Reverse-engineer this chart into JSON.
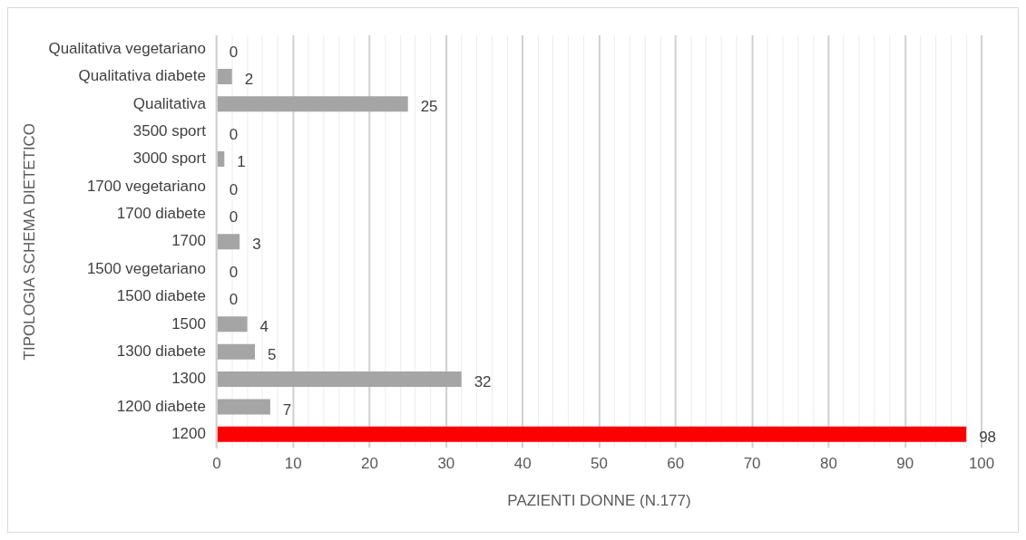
{
  "chart_data": {
    "type": "bar",
    "orientation": "horizontal",
    "categories": [
      "Qualitativa vegetariano",
      "Qualitativa diabete",
      "Qualitativa",
      "3500 sport",
      "3000 sport",
      "1700 vegetariano",
      "1700 diabete",
      "1700",
      "1500 vegetariano",
      "1500 diabete",
      "1500",
      "1300 diabete",
      "1300",
      "1200 diabete",
      "1200"
    ],
    "values": [
      0,
      2,
      25,
      0,
      1,
      0,
      0,
      3,
      0,
      0,
      4,
      5,
      32,
      7,
      98
    ],
    "colors": [
      "#a5a5a5",
      "#a5a5a5",
      "#a5a5a5",
      "#a5a5a5",
      "#a5a5a5",
      "#a5a5a5",
      "#a5a5a5",
      "#a5a5a5",
      "#a5a5a5",
      "#a5a5a5",
      "#a5a5a5",
      "#a5a5a5",
      "#a5a5a5",
      "#a5a5a5",
      "#ff0000"
    ],
    "xlim": [
      0,
      100
    ],
    "xticks": [
      0,
      {
        "value": 2,
        "label": null
      },
      {
        "value": 4,
        "label": null
      },
      {
        "value": 6,
        "label": null
      },
      {
        "value": 8,
        "label": null
      },
      10,
      {
        "value": 12,
        "label": null
      },
      {
        "value": 14,
        "label": null
      },
      {
        "value": 16,
        "label": null
      },
      {
        "value": 18,
        "label": null
      },
      20,
      {
        "value": 22,
        "label": null
      },
      {
        "value": 24,
        "label": null
      },
      {
        "value": 26,
        "label": null
      },
      {
        "value": 28,
        "label": null
      },
      30,
      {
        "value": 32,
        "label": null
      },
      {
        "value": 34,
        "label": null
      },
      {
        "value": 36,
        "label": null
      },
      {
        "value": 38,
        "label": null
      },
      40,
      {
        "value": 42,
        "label": null
      },
      {
        "value": 44,
        "label": null
      },
      {
        "value": 46,
        "label": null
      },
      {
        "value": 48,
        "label": null
      },
      50,
      {
        "value": 52,
        "label": null
      },
      {
        "value": 54,
        "label": null
      },
      {
        "value": 56,
        "label": null
      },
      {
        "value": 58,
        "label": null
      },
      60,
      {
        "value": 62,
        "label": null
      },
      {
        "value": 64,
        "label": null
      },
      {
        "value": 66,
        "label": null
      },
      {
        "value": 68,
        "label": null
      },
      70,
      {
        "value": 72,
        "label": null
      },
      {
        "value": 74,
        "label": null
      },
      {
        "value": 76,
        "label": null
      },
      {
        "value": 78,
        "label": null
      },
      80,
      {
        "value": 82,
        "label": null
      },
      {
        "value": 84,
        "label": null
      },
      {
        "value": 86,
        "label": null
      },
      {
        "value": 88,
        "label": null
      },
      90,
      {
        "value": 92,
        "label": null
      },
      {
        "value": 94,
        "label": null
      },
      {
        "value": 96,
        "label": null
      },
      {
        "value": 98,
        "label": null
      },
      100
    ],
    "xlabel": "PAZIENTI DONNE (N.177)",
    "ylabel": "TIPOLOGIA SCHEMA DIETETICO",
    "grid": "x",
    "data_labels": true,
    "legend": false
  }
}
